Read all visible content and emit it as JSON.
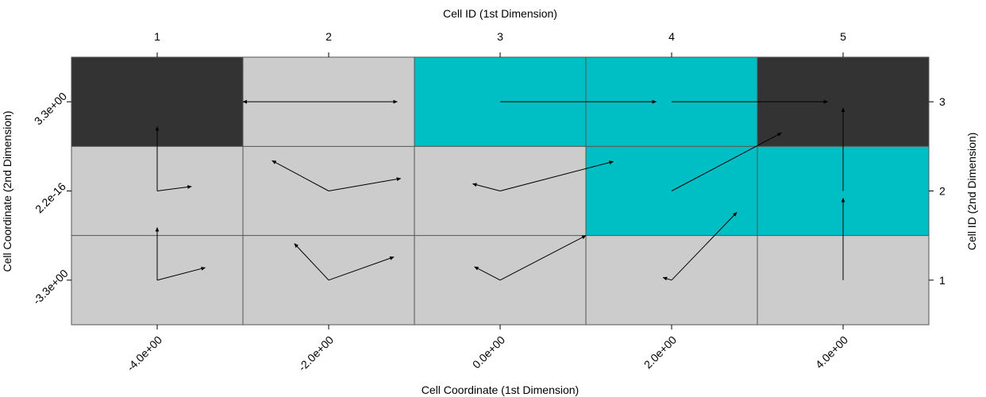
{
  "chart_data": {
    "type": "heatmap",
    "title": "",
    "top_axis_label": "Cell ID (1st Dimension)",
    "bottom_axis_label": "Cell Coordinate (1st Dimension)",
    "left_axis_label": "Cell Coordinate (2nd Dimension)",
    "right_axis_label": "Cell ID (2nd Dimension)",
    "cell_ids_x": [
      "1",
      "2",
      "3",
      "4",
      "5"
    ],
    "cell_ids_y": [
      "1",
      "2",
      "3"
    ],
    "coord_ticks_x": [
      "-4.0e+00",
      "-2.0e+00",
      "0.0e+00",
      "2.0e+00",
      "4.0e+00"
    ],
    "coord_ticks_y": [
      "-3.3e+00",
      "2.2e-16",
      "3.3e+00"
    ],
    "colors": {
      "dark": "#333333",
      "light": "#cccccc",
      "teal": "#00bfc4"
    },
    "cells": [
      {
        "col": 1,
        "row": 3,
        "color": "dark"
      },
      {
        "col": 2,
        "row": 3,
        "color": "light"
      },
      {
        "col": 3,
        "row": 3,
        "color": "teal"
      },
      {
        "col": 4,
        "row": 3,
        "color": "teal"
      },
      {
        "col": 5,
        "row": 3,
        "color": "dark"
      },
      {
        "col": 1,
        "row": 2,
        "color": "light"
      },
      {
        "col": 2,
        "row": 2,
        "color": "light"
      },
      {
        "col": 3,
        "row": 2,
        "color": "light"
      },
      {
        "col": 4,
        "row": 2,
        "color": "teal"
      },
      {
        "col": 5,
        "row": 2,
        "color": "teal"
      },
      {
        "col": 1,
        "row": 1,
        "color": "light"
      },
      {
        "col": 2,
        "row": 1,
        "color": "light"
      },
      {
        "col": 3,
        "row": 1,
        "color": "light"
      },
      {
        "col": 4,
        "row": 1,
        "color": "light"
      },
      {
        "col": 5,
        "row": 1,
        "color": "light"
      }
    ],
    "boundaries": {
      "vertical": [
        {
          "x": 1.5,
          "y0": 0.5,
          "y1": 3.5
        },
        {
          "x": 2.5,
          "y0": 0.5,
          "y1": 3.5
        },
        {
          "x": 3.5,
          "y0": 0.5,
          "y1": 3.5
        },
        {
          "x": 4.5,
          "y0": 0.5,
          "y1": 3.5
        }
      ],
      "horizontal": [
        {
          "y": 2.5,
          "x0": 0.5,
          "x1": 5.5
        },
        {
          "y": 1.5,
          "x0": 0.5,
          "x1": 5.5
        }
      ]
    },
    "vectors": [
      {
        "col": 1,
        "row": 3,
        "arrows": []
      },
      {
        "col": 2,
        "row": 3,
        "arrows": [
          [
            -0.5,
            0
          ],
          [
            0.4,
            0
          ]
        ]
      },
      {
        "col": 3,
        "row": 3,
        "arrows": [
          [
            0.91,
            0
          ]
        ]
      },
      {
        "col": 4,
        "row": 3,
        "arrows": [
          [
            0.91,
            0
          ]
        ]
      },
      {
        "col": 5,
        "row": 3,
        "arrows": []
      },
      {
        "col": 1,
        "row": 2,
        "arrows": [
          [
            0,
            0.72
          ],
          [
            0.2,
            0.05
          ]
        ]
      },
      {
        "col": 2,
        "row": 2,
        "arrows": [
          [
            -0.33,
            0.34
          ],
          [
            0.42,
            0.14
          ]
        ]
      },
      {
        "col": 3,
        "row": 2,
        "arrows": [
          [
            -0.16,
            0.08
          ],
          [
            0.66,
            0.33
          ]
        ]
      },
      {
        "col": 4,
        "row": 2,
        "arrows": [
          [
            0.64,
            0.65
          ]
        ]
      },
      {
        "col": 5,
        "row": 2,
        "arrows": [
          [
            0,
            0.93
          ]
        ]
      },
      {
        "col": 1,
        "row": 1,
        "arrows": [
          [
            0,
            0.59
          ],
          [
            0.28,
            0.14
          ]
        ]
      },
      {
        "col": 2,
        "row": 1,
        "arrows": [
          [
            -0.2,
            0.41
          ],
          [
            0.38,
            0.26
          ]
        ]
      },
      {
        "col": 3,
        "row": 1,
        "arrows": [
          [
            -0.15,
            0.15
          ],
          [
            0.5,
            0.5
          ]
        ]
      },
      {
        "col": 4,
        "row": 1,
        "arrows": [
          [
            -0.05,
            0.03
          ],
          [
            0.38,
            0.76
          ]
        ]
      },
      {
        "col": 5,
        "row": 1,
        "arrows": [
          [
            0,
            0.92
          ]
        ]
      }
    ]
  }
}
